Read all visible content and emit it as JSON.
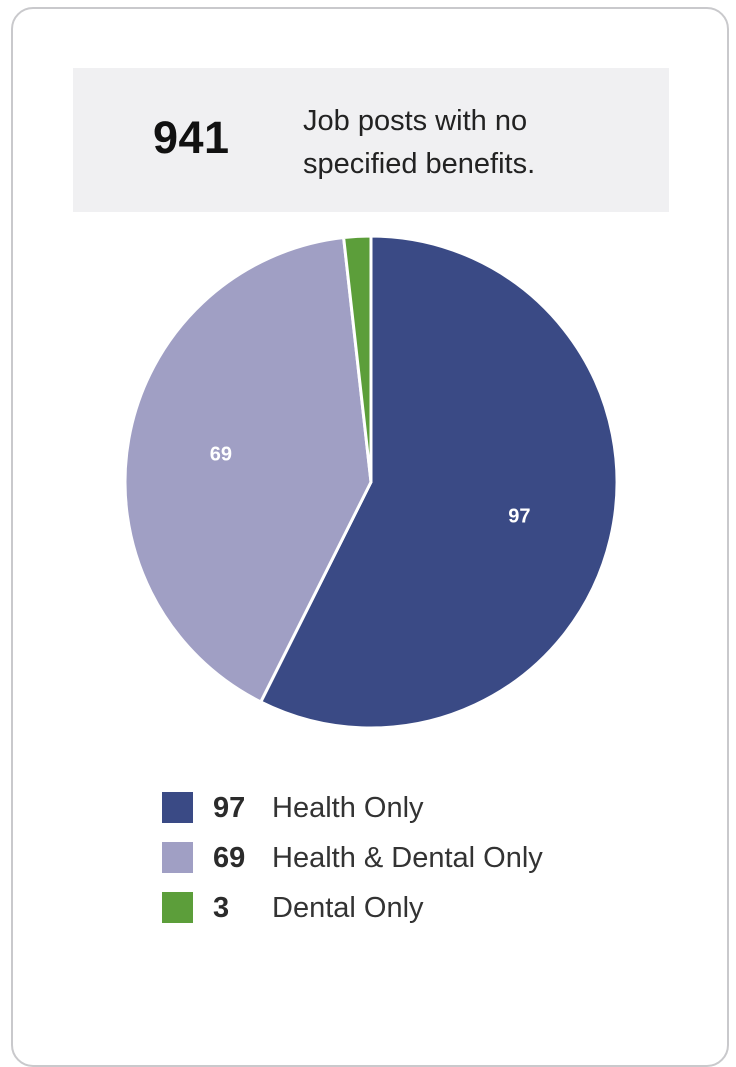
{
  "summary": {
    "count": "941",
    "description": "Job posts with no specified benefits."
  },
  "chart_data": {
    "type": "pie",
    "categories": [
      "Health Only",
      "Health & Dental Only",
      "Dental Only"
    ],
    "values": [
      97,
      69,
      3
    ],
    "colors": [
      "#3a4a85",
      "#a09fc4",
      "#5c9e3a"
    ],
    "slice_labels": [
      "97",
      "69",
      ""
    ],
    "legend": [
      {
        "value": "97",
        "label": "Health Only",
        "color": "#3a4a85"
      },
      {
        "value": "69",
        "label": "Health & Dental Only",
        "color": "#a09fc4"
      },
      {
        "value": "3",
        "label": "Dental Only",
        "color": "#5c9e3a"
      }
    ],
    "legend_position": "bottom"
  }
}
